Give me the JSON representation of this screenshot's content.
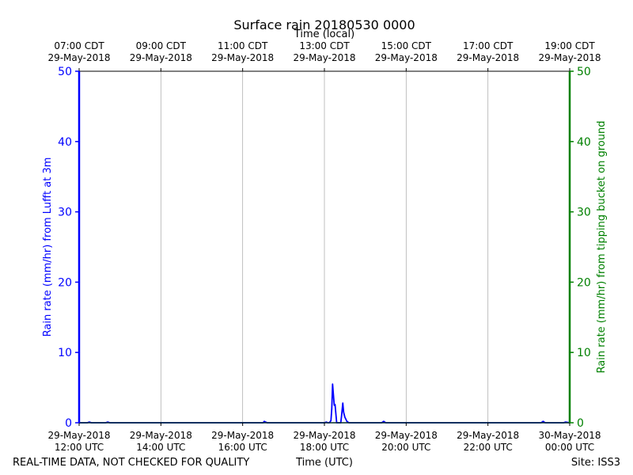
{
  "chart_data": {
    "type": "line",
    "title": "Surface rain 20180530 0000",
    "top_axis_label": "Time (local)",
    "xlabel": "Time (UTC)",
    "ylabel_left": "Rain rate (mm/hr) from Lufft at 3m",
    "ylabel_right": "Rain rate (mm/hr) from tipping bucket on ground",
    "footer_left": "REAL-TIME DATA, NOT CHECKED FOR QUALITY",
    "footer_right": "Site: ISS3",
    "xlim_hours_utc": [
      12,
      24
    ],
    "ylim": [
      0,
      50
    ],
    "y_ticks": [
      0,
      10,
      20,
      30,
      40,
      50
    ],
    "grid": true,
    "colors": {
      "left_axis": "#0000ff",
      "right_axis": "#008000",
      "lufft": "#0000ff",
      "bucket": "#008080"
    },
    "x_ticks_bottom": [
      {
        "h": 12,
        "line1": "29-May-2018",
        "line2": "12:00 UTC"
      },
      {
        "h": 14,
        "line1": "29-May-2018",
        "line2": "14:00 UTC"
      },
      {
        "h": 16,
        "line1": "29-May-2018",
        "line2": "16:00 UTC"
      },
      {
        "h": 18,
        "line1": "29-May-2018",
        "line2": "18:00 UTC"
      },
      {
        "h": 20,
        "line1": "29-May-2018",
        "line2": "20:00 UTC"
      },
      {
        "h": 22,
        "line1": "29-May-2018",
        "line2": "22:00 UTC"
      },
      {
        "h": 24,
        "line1": "30-May-2018",
        "line2": "00:00 UTC"
      }
    ],
    "x_ticks_top": [
      {
        "h": 12,
        "line1": "07:00 CDT",
        "line2": "29-May-2018"
      },
      {
        "h": 14,
        "line1": "09:00 CDT",
        "line2": "29-May-2018"
      },
      {
        "h": 16,
        "line1": "11:00 CDT",
        "line2": "29-May-2018"
      },
      {
        "h": 18,
        "line1": "13:00 CDT",
        "line2": "29-May-2018"
      },
      {
        "h": 20,
        "line1": "15:00 CDT",
        "line2": "29-May-2018"
      },
      {
        "h": 22,
        "line1": "17:00 CDT",
        "line2": "29-May-2018"
      },
      {
        "h": 24,
        "line1": "19:00 CDT",
        "line2": "29-May-2018"
      }
    ],
    "series": [
      {
        "axis": "left",
        "x_hours_utc": [
          12.0,
          12.2,
          12.25,
          12.3,
          12.65,
          12.7,
          12.75,
          13.0,
          16.5,
          16.53,
          16.56,
          16.6,
          18.0,
          18.05,
          18.08,
          18.12,
          18.16,
          18.18,
          18.2,
          18.22,
          18.24,
          18.26,
          18.3,
          18.4,
          18.42,
          18.45,
          18.47,
          18.5,
          18.55,
          18.6,
          19.4,
          19.45,
          19.5,
          23.3,
          23.35,
          23.4,
          23.85,
          23.9,
          24.0
        ],
        "values": [
          0.0,
          0.0,
          0.1,
          0.0,
          0.0,
          0.1,
          0.0,
          0.0,
          0.0,
          0.2,
          0.1,
          0.0,
          0.0,
          0.1,
          0.0,
          0.0,
          0.3,
          2.0,
          5.5,
          4.0,
          2.5,
          2.6,
          0.0,
          0.0,
          1.0,
          2.8,
          1.5,
          0.8,
          0.2,
          0.0,
          0.0,
          0.2,
          0.0,
          0.0,
          0.2,
          0.0,
          0.0,
          0.1,
          0.0
        ]
      },
      {
        "axis": "right",
        "x_hours_utc": [
          12.0,
          24.0
        ],
        "values": [
          0.0,
          0.0
        ]
      }
    ]
  }
}
